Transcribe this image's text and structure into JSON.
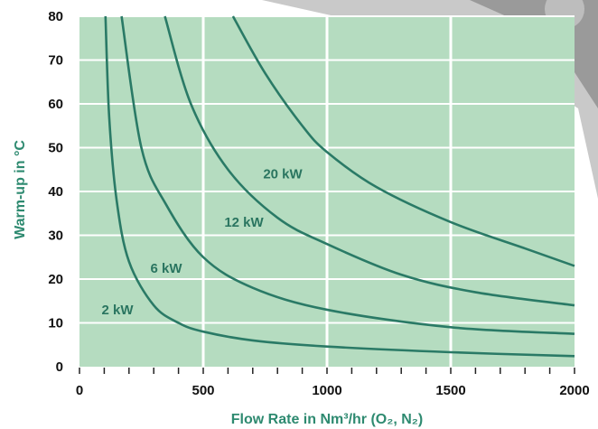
{
  "chart_data": {
    "type": "line",
    "title": "",
    "xlabel": "Flow Rate in Nm³/hr (O₂, N₂)",
    "ylabel": "Warm-up in °C",
    "xlim": [
      0,
      2000
    ],
    "ylim": [
      0,
      80
    ],
    "x_ticks": [
      "0",
      "500",
      "1000",
      "1500",
      "2000"
    ],
    "y_ticks": [
      "0",
      "10",
      "20",
      "30",
      "40",
      "50",
      "60",
      "70",
      "80"
    ],
    "grid": true,
    "colors": {
      "plot_background": "#b5dcc0",
      "grid": "#ffffff",
      "line": "#2a7a66",
      "title_text": "#2e8a70"
    },
    "series": [
      {
        "name": "2 kW",
        "x": [
          105,
          120,
          150,
          200,
          300,
          400,
          500,
          700,
          1000,
          1500,
          2000
        ],
        "y": [
          80,
          57,
          38,
          24,
          14,
          10,
          8,
          6,
          4.6,
          3.3,
          2.4
        ]
      },
      {
        "name": "6 kW",
        "x": [
          170,
          250,
          350,
          500,
          700,
          1000,
          1500,
          2000
        ],
        "y": [
          80,
          50,
          37,
          25,
          18,
          13,
          9,
          7.5
        ]
      },
      {
        "name": "12 kW",
        "x": [
          345,
          450,
          600,
          800,
          1000,
          1300,
          1600,
          2000
        ],
        "y": [
          80,
          60,
          45,
          34,
          28,
          21,
          17,
          14
        ]
      },
      {
        "name": "20 kW",
        "x": [
          620,
          750,
          900,
          1000,
          1200,
          1500,
          1800,
          2000
        ],
        "y": [
          80,
          67,
          55,
          49,
          41,
          33,
          27,
          23
        ]
      }
    ]
  }
}
